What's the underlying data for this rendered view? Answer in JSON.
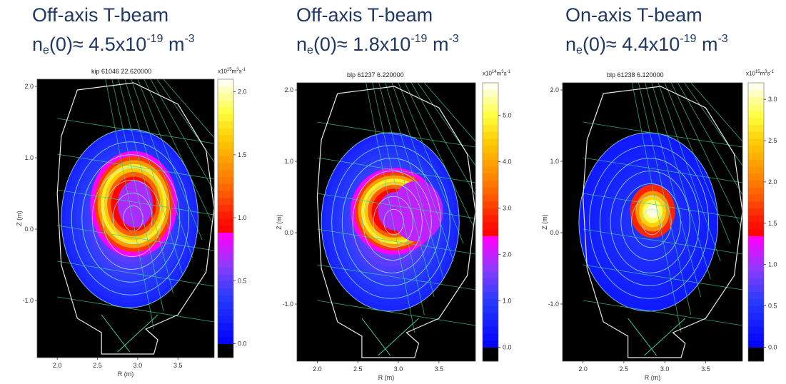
{
  "headings": [
    {
      "line1": "Off-axis T-beam",
      "ne": "n",
      "sub": "e",
      "mid": "(0)≈ 4.5x10",
      "exp": "-19",
      "unit": " m",
      "unitexp": "-3"
    },
    {
      "line1": "Off-axis T-beam",
      "ne": "n",
      "sub": "e",
      "mid": "(0)≈ 1.8x10",
      "exp": "-19",
      "unit": " m",
      "unitexp": "-3"
    },
    {
      "line1": "On-axis T-beam",
      "ne": "n",
      "sub": "e",
      "mid": "(0)≈ 4.4x10",
      "exp": "-19",
      "unit": " m",
      "unitexp": "-3"
    }
  ],
  "chart_data": [
    {
      "type": "heatmap",
      "title": "kip  61046 22.620000",
      "xlabel": "R (m)",
      "ylabel": "Z (m)",
      "xlim": [
        1.75,
        3.95
      ],
      "ylim": [
        -1.8,
        2.1
      ],
      "xticks": [
        "2.0",
        "2.5",
        "3.0",
        "3.5"
      ],
      "yticks": [
        "2.0",
        "1.0",
        "0.0",
        "-1.0"
      ],
      "colorbar": {
        "unit_base": "x10",
        "unit_exp": "15",
        "unit_rest": "m",
        "unit_rest_exp": "3",
        "unit_s": "s",
        "unit_s_exp": "-1",
        "ticks": [
          "2.0",
          "1.5",
          "1.0",
          "0.5",
          "0.0"
        ],
        "max": 2.1
      },
      "profile": "off-axis ring",
      "core_center": [
        2.95,
        0.35
      ],
      "ring_radius_R": 0.4,
      "ring_radius_Z": 0.55
    },
    {
      "type": "heatmap",
      "title": "blp  61237 6.220000",
      "xlabel": "R (m)",
      "ylabel": "Z (m)",
      "xlim": [
        1.75,
        3.95
      ],
      "ylim": [
        -1.8,
        2.1
      ],
      "xticks": [
        "2.0",
        "2.5",
        "3.0",
        "3.5"
      ],
      "yticks": [
        "2.0",
        "1.0",
        "0.0",
        "-1.0"
      ],
      "colorbar": {
        "unit_base": "x10",
        "unit_exp": "14",
        "unit_rest": "m",
        "unit_rest_exp": "3",
        "unit_s": "s",
        "unit_s_exp": "-1",
        "ticks": [
          "5.0",
          "4.0",
          "3.0",
          "2.0",
          "1.0",
          "0.0"
        ],
        "max": 5.7
      },
      "profile": "off-axis crescent",
      "core_center": [
        2.95,
        0.3
      ],
      "ring_radius_R": 0.4,
      "ring_radius_Z": 0.45
    },
    {
      "type": "heatmap",
      "title": "blp  61238 6.120000",
      "xlabel": "R (m)",
      "ylabel": "Z (m)",
      "xlim": [
        1.75,
        3.95
      ],
      "ylim": [
        -1.8,
        2.1
      ],
      "xticks": [
        "2.0",
        "2.5",
        "3.0",
        "3.5"
      ],
      "yticks": [
        "2.0",
        "1.0",
        "0.0",
        "-1.0"
      ],
      "colorbar": {
        "unit_base": "x10",
        "unit_exp": "15",
        "unit_rest": "m",
        "unit_rest_exp": "3",
        "unit_s": "s",
        "unit_s_exp": "-1",
        "ticks": [
          "3.0",
          "2.5",
          "2.0",
          "1.5",
          "1.0",
          "0.5",
          "0.0"
        ],
        "max": 3.2
      },
      "profile": "on-axis peak",
      "core_center": [
        2.85,
        0.3
      ],
      "ring_radius_R": 0.0,
      "ring_radius_Z": 0.0
    }
  ]
}
